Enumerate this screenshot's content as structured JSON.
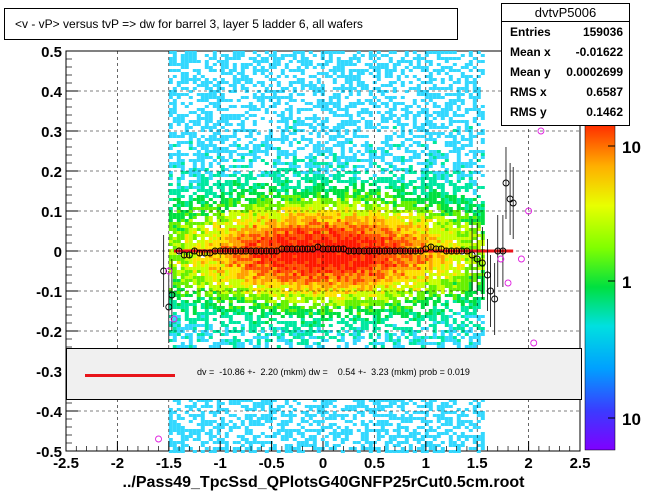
{
  "title": "<v - vP>       versus  tvP =>  dw for barrel 3, layer 5 ladder 6, all wafers",
  "stats": {
    "name": "dvtvP5006",
    "rows": [
      {
        "label": "Entries",
        "value": "159036"
      },
      {
        "label": "Mean x",
        "value": "-0.01622"
      },
      {
        "label": "Mean y",
        "value": "0.0002699"
      },
      {
        "label": "RMS x",
        "value": "0.6587"
      },
      {
        "label": "RMS y",
        "value": "0.1462"
      }
    ]
  },
  "fit_text": "dv =  -10.86 +-  2.20 (mkm) dw =    0.54 +-  3.23 (mkm) prob = 0.019",
  "footer": "../Pass49_TpcSsd_QPlotsG40GNFP25rCut0.5cm.root",
  "chart_data": {
    "type": "heatmap",
    "title": "<v - vP>       versus  tvP =>  dw for barrel 3, layer 5 ladder 6, all wafers",
    "xlim": [
      -2.5,
      2.5
    ],
    "ylim": [
      -0.5,
      0.5
    ],
    "x_ticks": [
      "-2.5",
      "-2",
      "-1.5",
      "-1",
      "-0.5",
      "0",
      "0.5",
      "1",
      "1.5",
      "2",
      "2.5"
    ],
    "y_ticks": [
      "-0.5",
      "-0.4",
      "-0.3",
      "-0.2",
      "-0.1",
      "0",
      "0.1",
      "0.2",
      "0.3",
      "0.4",
      "0.5"
    ],
    "colorbar_ticks": [
      "10",
      "1",
      "10"
    ],
    "grid": true,
    "fit_line": {
      "x": [
        -1.45,
        1.85
      ],
      "y": [
        0.0,
        0.0
      ],
      "color": "#e8141a"
    },
    "profile_points": [
      {
        "x": -1.55,
        "y": -0.05
      },
      {
        "x": -1.5,
        "y": -0.14
      },
      {
        "x": -1.47,
        "y": -0.11
      },
      {
        "x": -1.4,
        "y": 0.0
      },
      {
        "x": -1.35,
        "y": -0.01
      },
      {
        "x": -1.3,
        "y": -0.01
      },
      {
        "x": -1.25,
        "y": 0.0
      },
      {
        "x": -1.2,
        "y": -0.005
      },
      {
        "x": -1.15,
        "y": -0.005
      },
      {
        "x": -1.1,
        "y": -0.005
      },
      {
        "x": -1.05,
        "y": 0.0
      },
      {
        "x": -1.0,
        "y": 0.0
      },
      {
        "x": -0.95,
        "y": 0.0
      },
      {
        "x": -0.9,
        "y": 0.0
      },
      {
        "x": -0.85,
        "y": 0.0
      },
      {
        "x": -0.8,
        "y": 0.0
      },
      {
        "x": -0.75,
        "y": 0.0
      },
      {
        "x": -0.7,
        "y": 0.0
      },
      {
        "x": -0.65,
        "y": 0.0
      },
      {
        "x": -0.6,
        "y": 0.0
      },
      {
        "x": -0.55,
        "y": 0.0
      },
      {
        "x": -0.5,
        "y": 0.0
      },
      {
        "x": -0.45,
        "y": 0.0
      },
      {
        "x": -0.4,
        "y": 0.005
      },
      {
        "x": -0.35,
        "y": 0.005
      },
      {
        "x": -0.3,
        "y": 0.005
      },
      {
        "x": -0.25,
        "y": 0.005
      },
      {
        "x": -0.2,
        "y": 0.005
      },
      {
        "x": -0.15,
        "y": 0.005
      },
      {
        "x": -0.1,
        "y": 0.005
      },
      {
        "x": -0.05,
        "y": 0.01
      },
      {
        "x": 0.0,
        "y": 0.005
      },
      {
        "x": 0.05,
        "y": 0.005
      },
      {
        "x": 0.1,
        "y": 0.005
      },
      {
        "x": 0.15,
        "y": 0.005
      },
      {
        "x": 0.2,
        "y": 0.005
      },
      {
        "x": 0.25,
        "y": 0.0
      },
      {
        "x": 0.3,
        "y": 0.0
      },
      {
        "x": 0.35,
        "y": 0.0
      },
      {
        "x": 0.4,
        "y": 0.0
      },
      {
        "x": 0.45,
        "y": 0.0
      },
      {
        "x": 0.5,
        "y": 0.0
      },
      {
        "x": 0.55,
        "y": 0.0
      },
      {
        "x": 0.6,
        "y": 0.0
      },
      {
        "x": 0.65,
        "y": 0.0
      },
      {
        "x": 0.7,
        "y": 0.0
      },
      {
        "x": 0.75,
        "y": 0.0
      },
      {
        "x": 0.8,
        "y": 0.0
      },
      {
        "x": 0.85,
        "y": 0.0
      },
      {
        "x": 0.9,
        "y": 0.0
      },
      {
        "x": 0.95,
        "y": 0.0
      },
      {
        "x": 1.0,
        "y": 0.005
      },
      {
        "x": 1.05,
        "y": 0.01
      },
      {
        "x": 1.1,
        "y": 0.005
      },
      {
        "x": 1.15,
        "y": 0.005
      },
      {
        "x": 1.2,
        "y": 0.0
      },
      {
        "x": 1.25,
        "y": 0.0
      },
      {
        "x": 1.3,
        "y": 0.0
      },
      {
        "x": 1.35,
        "y": 0.0
      },
      {
        "x": 1.4,
        "y": 0.0
      },
      {
        "x": 1.45,
        "y": -0.01
      },
      {
        "x": 1.5,
        "y": -0.02
      },
      {
        "x": 1.55,
        "y": -0.03
      },
      {
        "x": 1.6,
        "y": -0.06
      },
      {
        "x": 1.63,
        "y": -0.1
      },
      {
        "x": 1.67,
        "y": -0.12
      },
      {
        "x": 1.7,
        "y": 0.0
      },
      {
        "x": 1.75,
        "y": 0.0
      },
      {
        "x": 1.78,
        "y": 0.17
      },
      {
        "x": 1.82,
        "y": 0.13
      },
      {
        "x": 1.85,
        "y": 0.12
      }
    ],
    "outlier_points": [
      {
        "x": -1.5,
        "y": -0.05
      },
      {
        "x": -1.45,
        "y": -0.17
      },
      {
        "x": -1.6,
        "y": -0.47
      },
      {
        "x": 1.73,
        "y": -0.02
      },
      {
        "x": 1.8,
        "y": -0.08
      },
      {
        "x": 1.93,
        "y": -0.02
      },
      {
        "x": 2.0,
        "y": 0.1
      },
      {
        "x": 2.12,
        "y": 0.3
      },
      {
        "x": 2.05,
        "y": -0.23
      }
    ]
  }
}
